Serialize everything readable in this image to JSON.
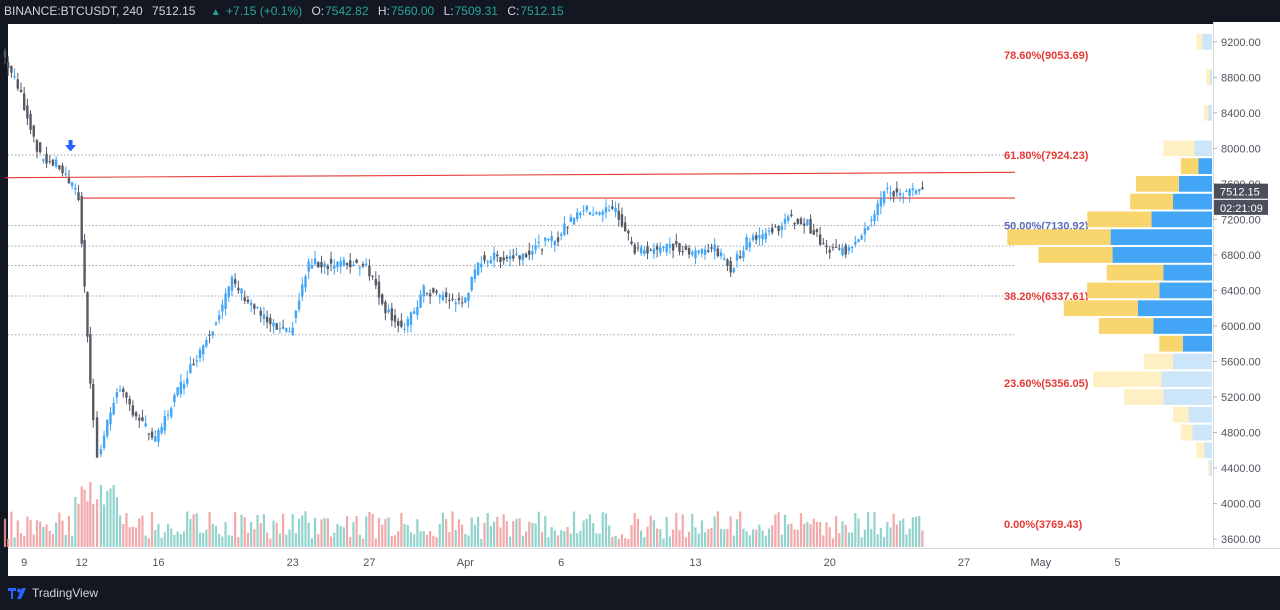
{
  "header": {
    "symbol": "BINANCE:BTCUSDT, 240",
    "last": "7512.15",
    "change_arrow": "▲",
    "change": "+7.15 (+0.1%)",
    "open_label": "O:",
    "open": "7542.82",
    "high_label": "H:",
    "high": "7560.00",
    "low_label": "L:",
    "low": "7509.31",
    "close_label": "C:",
    "close": "7512.15"
  },
  "footer": {
    "brand": "TradingView",
    "logo_icon": "tradingview-logo-icon"
  },
  "colors": {
    "background": "#131722",
    "chart_bg": "#ffffff",
    "up": "#42a5f5",
    "down": "#565a64",
    "vol_up": "#80cbc4",
    "vol_down": "#ef9a9a",
    "fib_text": "#e53935",
    "fib_50_text": "#5c6bc0",
    "resistance": "#e53935",
    "vp_up": "#42a5f5",
    "vp_down": "#f9d56e",
    "vp_up_light": "#cce5f8",
    "vp_down_light": "#fff0c4",
    "signal": "#2962ff",
    "label_bg": "#4a4f5c"
  },
  "chart_data": {
    "type": "candlestick",
    "symbol": "BINANCE:BTCUSDT",
    "timeframe": "240",
    "y_range": [
      3500,
      9400
    ],
    "y_ticks": [
      "9200.00",
      "8800.00",
      "8400.00",
      "8000.00",
      "7600.00",
      "7200.00",
      "6800.00",
      "6400.00",
      "6000.00",
      "5600.00",
      "5200.00",
      "4800.00",
      "4400.00",
      "4000.00",
      "3600.00"
    ],
    "x_ticks": [
      "9",
      "12",
      "16",
      "23",
      "27",
      "Apr",
      "6",
      "13",
      "20",
      "27",
      "May",
      "5"
    ],
    "fib_levels": [
      {
        "label": "78.60%(9053.69)",
        "price": 9053.69
      },
      {
        "label": "61.80%(7924.23)",
        "price": 7924.23
      },
      {
        "label": "50.00%(7130.92)",
        "price": 7130.92
      },
      {
        "label": "38.20%(6337.61)",
        "price": 6337.61
      },
      {
        "label": "23.60%(5356.05)",
        "price": 5356.05
      },
      {
        "label": "0.00%(3769.43)",
        "price": 3769.43
      }
    ],
    "price_labels": [
      {
        "text": "7512.15",
        "price": 7512.15
      },
      {
        "text": "02:21:09",
        "price": 7330
      }
    ],
    "resistance_lines": [
      {
        "from": {
          "x": "Mar 8",
          "price": 7670
        },
        "to": {
          "x": "Apr 27",
          "price": 7730
        }
      },
      {
        "from": {
          "x": "Mar 12",
          "price": 7440
        },
        "to": {
          "x": "Apr 27",
          "price": 7440
        }
      }
    ],
    "dotted_levels": [
      7924.23,
      7130.92,
      6900,
      6680,
      6337.61,
      5900
    ],
    "key_points": [
      {
        "x": "Mar 8",
        "price": 9100
      },
      {
        "x": "Mar 9",
        "price": 8600
      },
      {
        "x": "Mar 10",
        "price": 7900
      },
      {
        "x": "Mar 11",
        "price": 7800
      },
      {
        "x": "Mar 12",
        "price": 7450
      },
      {
        "x": "Mar 12.6",
        "price": 5400
      },
      {
        "x": "Mar 13",
        "price": 4500
      },
      {
        "x": "Mar 14",
        "price": 5300
      },
      {
        "x": "Mar 16",
        "price": 4700
      },
      {
        "x": "Mar 17",
        "price": 5200
      },
      {
        "x": "Mar 19",
        "price": 6000
      },
      {
        "x": "Mar 20",
        "price": 6500
      },
      {
        "x": "Mar 22",
        "price": 6000
      },
      {
        "x": "Mar 23",
        "price": 5900
      },
      {
        "x": "Mar 24",
        "price": 6700
      },
      {
        "x": "Mar 26",
        "price": 6700
      },
      {
        "x": "Mar 27",
        "price": 6700
      },
      {
        "x": "Mar 28",
        "price": 6200
      },
      {
        "x": "Mar 29",
        "price": 5950
      },
      {
        "x": "Mar 30",
        "price": 6400
      },
      {
        "x": "Apr 1",
        "price": 6250
      },
      {
        "x": "Apr 2",
        "price": 6750
      },
      {
        "x": "Apr 4",
        "price": 6800
      },
      {
        "x": "Apr 6",
        "price": 7000
      },
      {
        "x": "Apr 7",
        "price": 7300
      },
      {
        "x": "Apr 9",
        "price": 7300
      },
      {
        "x": "Apr 10",
        "price": 6850
      },
      {
        "x": "Apr 12",
        "price": 6900
      },
      {
        "x": "Apr 13",
        "price": 6800
      },
      {
        "x": "Apr 14",
        "price": 6900
      },
      {
        "x": "Apr 15",
        "price": 6650
      },
      {
        "x": "Apr 16",
        "price": 7000
      },
      {
        "x": "Apr 17",
        "price": 7050
      },
      {
        "x": "Apr 18",
        "price": 7200
      },
      {
        "x": "Apr 19",
        "price": 7150
      },
      {
        "x": "Apr 20",
        "price": 6850
      },
      {
        "x": "Apr 21",
        "price": 6850
      },
      {
        "x": "Apr 22",
        "price": 7100
      },
      {
        "x": "Apr 23",
        "price": 7500
      },
      {
        "x": "Apr 24",
        "price": 7500
      },
      {
        "x": "Apr 25",
        "price": 7512.15
      }
    ],
    "volume_profile": [
      {
        "price": 9200,
        "up": 0.05,
        "down": 0.03
      },
      {
        "price": 8800,
        "up": 0.01,
        "down": 0.02
      },
      {
        "price": 8400,
        "up": 0.02,
        "down": 0.02
      },
      {
        "price": 8000,
        "up": 0.09,
        "down": 0.16
      },
      {
        "price": 7800,
        "up": 0.07,
        "down": 0.09
      },
      {
        "price": 7600,
        "up": 0.17,
        "down": 0.22
      },
      {
        "price": 7400,
        "up": 0.2,
        "down": 0.22
      },
      {
        "price": 7200,
        "up": 0.31,
        "down": 0.33
      },
      {
        "price": 7000,
        "up": 0.52,
        "down": 0.53
      },
      {
        "price": 6800,
        "up": 0.51,
        "down": 0.38
      },
      {
        "price": 6600,
        "up": 0.25,
        "down": 0.29
      },
      {
        "price": 6400,
        "up": 0.27,
        "down": 0.37
      },
      {
        "price": 6200,
        "up": 0.38,
        "down": 0.38
      },
      {
        "price": 6000,
        "up": 0.3,
        "down": 0.28
      },
      {
        "price": 5800,
        "up": 0.15,
        "down": 0.12
      },
      {
        "price": 5600,
        "up": 0.2,
        "down": 0.15
      },
      {
        "price": 5400,
        "up": 0.26,
        "down": 0.35
      },
      {
        "price": 5200,
        "up": 0.25,
        "down": 0.2
      },
      {
        "price": 5000,
        "up": 0.12,
        "down": 0.08
      },
      {
        "price": 4800,
        "up": 0.1,
        "down": 0.06
      },
      {
        "price": 4600,
        "up": 0.04,
        "down": 0.04
      },
      {
        "price": 4400,
        "up": 0.01,
        "down": 0.01
      }
    ]
  }
}
